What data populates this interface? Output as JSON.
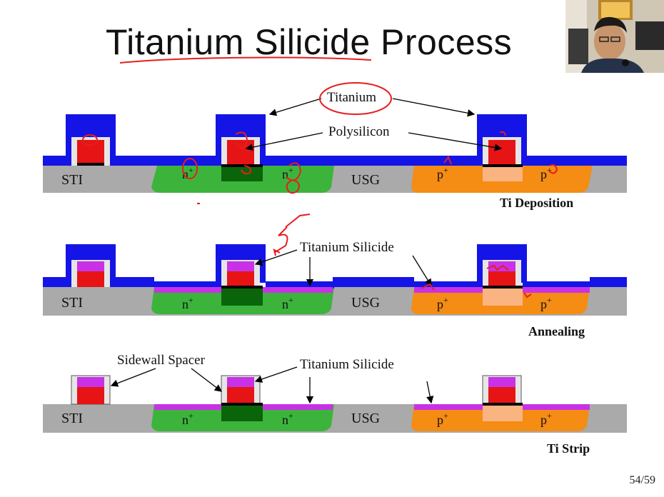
{
  "slide": {
    "title": "Titanium Silicide Process",
    "page_number": "54/59"
  },
  "labels": {
    "titanium": "Titanium",
    "polysilicon": "Polysilicon",
    "titanium_silicide": "Titanium Silicide",
    "sidewall_spacer": "Sidewall Spacer",
    "sti": "STI",
    "usg": "USG",
    "n_plus": "n",
    "p_plus": "p",
    "plus": "+"
  },
  "steps": [
    {
      "caption": "Ti Deposition"
    },
    {
      "caption": "Annealing"
    },
    {
      "caption": "Ti Strip"
    }
  ],
  "colors": {
    "titanium": "#1414e6",
    "polysilicon": "#e61414",
    "silicide": "#c832e6",
    "oxide": "#aaaaaa",
    "n_region": "#3cb43c",
    "n_channel": "#0a640a",
    "p_region": "#f58c14",
    "p_channel": "#fab482",
    "spacer": "#e6e6e6",
    "annotation": "#e61e1e"
  },
  "webcam": {
    "description_icon": "presenter-webcam"
  }
}
